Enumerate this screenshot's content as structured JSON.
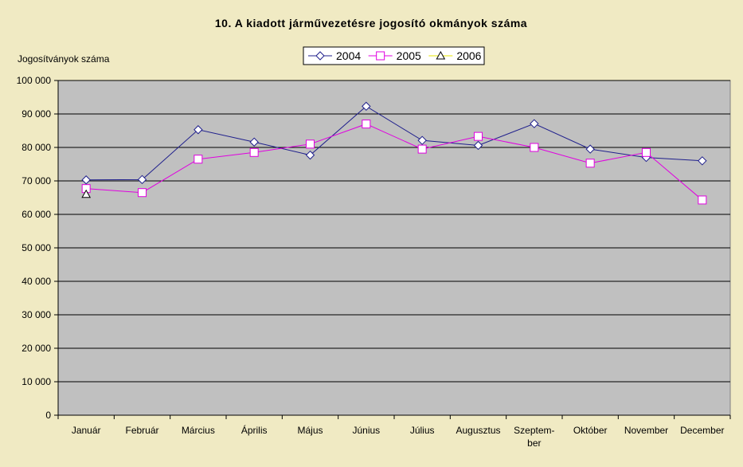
{
  "chart_data": {
    "type": "line",
    "title": "10. A kiadott járművezetésre jogosító okmányok száma",
    "ylabel": "Jogosítványok száma",
    "xlabel": "",
    "ylim": [
      0,
      100000
    ],
    "yticks": [
      "0",
      "10 000",
      "20 000",
      "30 000",
      "40 000",
      "50 000",
      "60 000",
      "70 000",
      "80 000",
      "90 000",
      "100 000"
    ],
    "categories": [
      "Január",
      "Február",
      "Március",
      "Április",
      "Május",
      "Június",
      "Július",
      "Augusztus",
      "Szeptem-\nber",
      "Október",
      "November",
      "December"
    ],
    "grid": true,
    "legend_position": "top",
    "series": [
      {
        "name": "2004",
        "color": "#1F1F8C",
        "marker": "diamond",
        "values": [
          70300,
          70400,
          85300,
          81600,
          77700,
          92300,
          82100,
          80600,
          87100,
          79500,
          77000,
          76000
        ]
      },
      {
        "name": "2005",
        "color": "#E000E0",
        "marker": "square",
        "values": [
          67700,
          66500,
          76500,
          78500,
          81000,
          87000,
          79500,
          83300,
          80000,
          75300,
          78500,
          64300
        ]
      },
      {
        "name": "2006",
        "color": "#E6E600",
        "marker": "triangle",
        "values": [
          66000,
          null,
          null,
          null,
          null,
          null,
          null,
          null,
          null,
          null,
          null,
          null
        ]
      }
    ]
  }
}
